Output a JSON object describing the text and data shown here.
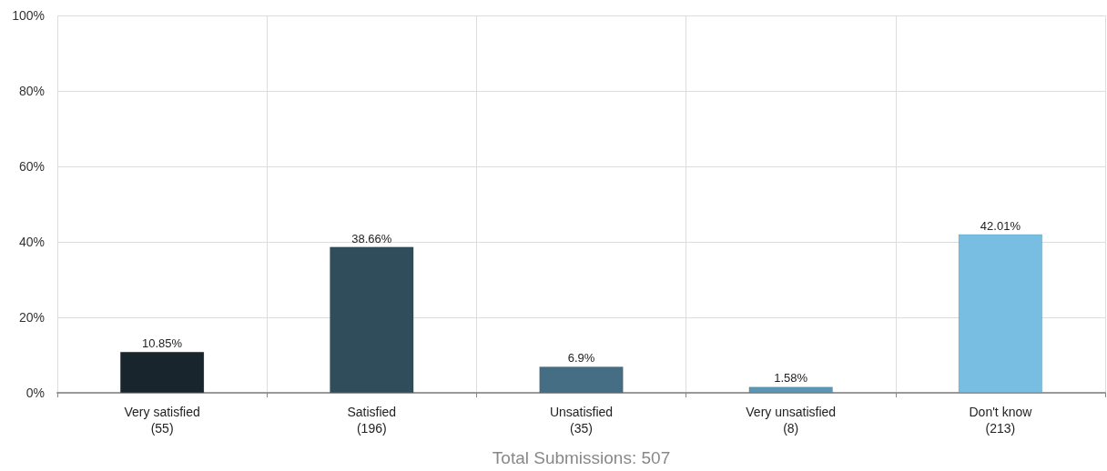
{
  "chart_data": {
    "type": "bar",
    "xlabel": "Total Submissions: 507",
    "categories": [
      "Very satisfied\n(55)",
      "Satisfied\n(196)",
      "Unsatisfied\n(35)",
      "Very unsatisfied\n(8)",
      "Don't know\n(213)"
    ],
    "values": [
      10.85,
      38.66,
      6.9,
      1.58,
      42.01
    ],
    "colors": [
      "#19252c",
      "#2f4d5a",
      "#456e85",
      "#5b97b5",
      "#77bee2"
    ],
    "value_labels": [
      "10.85%",
      "38.66%",
      "6.9%",
      "1.58%",
      "42.01%"
    ],
    "ylim": [
      0,
      100
    ],
    "yticks": [
      {
        "value": 0,
        "label": "0%"
      },
      {
        "value": 20,
        "label": "20%"
      },
      {
        "value": 40,
        "label": "40%"
      },
      {
        "value": 60,
        "label": "60%"
      },
      {
        "value": 80,
        "label": "80%"
      },
      {
        "value": 100,
        "label": "100%"
      }
    ],
    "grid": true
  }
}
